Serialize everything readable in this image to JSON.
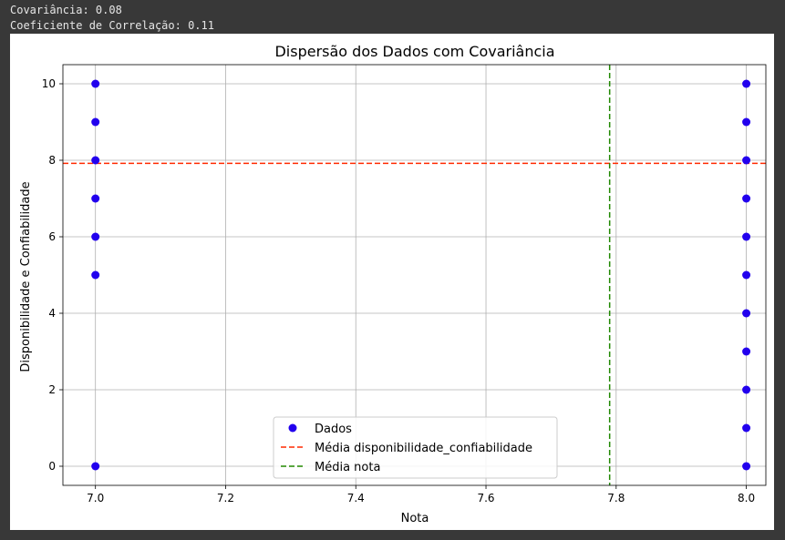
{
  "output": {
    "line1": "Covariância: 0.08",
    "line2": "Coeficiente de Correlação: 0.11"
  },
  "colors": {
    "background": "#383838",
    "points": "#2200ee",
    "mean_y_line": "#ff2a00",
    "mean_x_line": "#228800",
    "grid": "#b0b0b0"
  },
  "chart_data": {
    "type": "scatter",
    "title": "Dispersão dos Dados com Covariância",
    "xlabel": "Nota",
    "ylabel": "Disponibilidade e Confiabilidade",
    "xlim": [
      6.95,
      8.03
    ],
    "ylim": [
      -0.5,
      10.5
    ],
    "xticks": [
      "7.0",
      "7.2",
      "7.4",
      "7.6",
      "7.8",
      "8.0"
    ],
    "yticks": [
      "0",
      "2",
      "4",
      "6",
      "8",
      "10"
    ],
    "grid": true,
    "legend_position": "lower-center",
    "series": [
      {
        "name": "Dados",
        "x": [
          7,
          7,
          7,
          7,
          7,
          7,
          7,
          8,
          8,
          8,
          8,
          8,
          8,
          8,
          8,
          8,
          8,
          8
        ],
        "y": [
          0,
          5,
          6,
          7,
          8,
          9,
          10,
          0,
          1,
          2,
          3,
          4,
          5,
          6,
          7,
          8,
          9,
          10
        ]
      }
    ],
    "mean_lines": [
      {
        "name": "Média  disponibilidade_confiabilidade",
        "orientation": "horizontal",
        "value": 7.92
      },
      {
        "name": "Média nota",
        "orientation": "vertical",
        "value": 7.79
      }
    ]
  }
}
